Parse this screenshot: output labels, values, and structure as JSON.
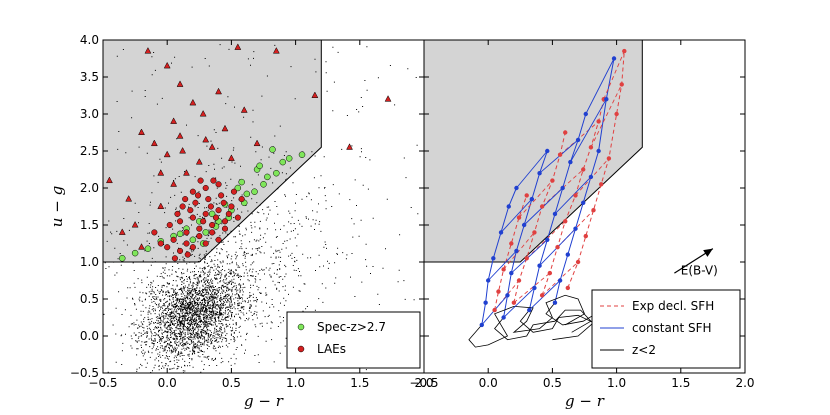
{
  "chart_data": [
    {
      "panel": "left",
      "type": "scatter",
      "xlabel": "g − r",
      "ylabel": "u − g",
      "xlim": [
        -0.5,
        2.0
      ],
      "ylim": [
        -0.5,
        4.0
      ],
      "xticks": [
        "−0.5",
        "0.0",
        "0.5",
        "1.0",
        "1.5",
        "2.0"
      ],
      "yticks": [
        "−0.5",
        "0.0",
        "0.5",
        "1.0",
        "1.5",
        "2.0",
        "2.5",
        "3.0",
        "3.5",
        "4.0"
      ],
      "selection_region": [
        [
          -0.5,
          1.0
        ],
        [
          -0.5,
          4.0
        ],
        [
          1.2,
          4.0
        ],
        [
          1.2,
          2.55
        ],
        [
          0.25,
          1.0
        ]
      ],
      "background_field": {
        "description": "dense cloud of field galaxies (small black dots)",
        "peak": [
          0.2,
          0.3
        ],
        "count_estimate": 20000
      },
      "legend_position": "lower right",
      "series": [
        {
          "name": "Spec-z>2.7",
          "marker": "circle",
          "color": "#7fe65a",
          "points": [
            [
              0.82,
              2.52
            ],
            [
              0.9,
              2.35
            ],
            [
              0.7,
              2.25
            ],
            [
              0.78,
              2.15
            ],
            [
              0.55,
              2.0
            ],
            [
              0.62,
              1.92
            ],
            [
              0.45,
              1.78
            ],
            [
              0.35,
              1.65
            ],
            [
              0.25,
              1.55
            ],
            [
              0.15,
              1.45
            ],
            [
              0.05,
              1.35
            ],
            [
              -0.05,
              1.28
            ],
            [
              -0.15,
              1.18
            ],
            [
              -0.25,
              1.12
            ],
            [
              -0.35,
              1.05
            ],
            [
              0.3,
              1.4
            ],
            [
              0.4,
              1.55
            ],
            [
              0.2,
              1.3
            ],
            [
              0.5,
              1.7
            ],
            [
              0.6,
              1.8
            ],
            [
              0.68,
              1.95
            ],
            [
              0.75,
              2.05
            ],
            [
              0.85,
              2.2
            ],
            [
              0.95,
              2.4
            ],
            [
              1.05,
              2.45
            ],
            [
              0.58,
              2.08
            ],
            [
              0.1,
              1.38
            ],
            [
              0.28,
              1.25
            ],
            [
              0.38,
              1.48
            ],
            [
              0.72,
              2.3
            ],
            [
              0.48,
              1.6
            ]
          ]
        },
        {
          "name": "LAEs",
          "marker": "circle",
          "color": "#d42020",
          "points": [
            [
              0.1,
              1.55
            ],
            [
              0.2,
              1.6
            ],
            [
              0.3,
              1.65
            ],
            [
              0.4,
              1.7
            ],
            [
              0.5,
              1.75
            ],
            [
              0.15,
              1.4
            ],
            [
              0.25,
              1.45
            ],
            [
              0.35,
              1.5
            ],
            [
              0.45,
              1.55
            ],
            [
              0.05,
              1.3
            ],
            [
              0.15,
              1.25
            ],
            [
              0.25,
              1.35
            ],
            [
              0.35,
              1.4
            ],
            [
              0.0,
              1.2
            ],
            [
              0.1,
              1.15
            ],
            [
              0.2,
              1.2
            ],
            [
              0.3,
              1.25
            ],
            [
              0.4,
              1.3
            ],
            [
              0.12,
              1.75
            ],
            [
              0.22,
              1.8
            ],
            [
              0.32,
              1.85
            ],
            [
              0.42,
              1.9
            ],
            [
              0.52,
              1.95
            ],
            [
              0.2,
              1.95
            ],
            [
              0.3,
              2.0
            ],
            [
              0.4,
              2.05
            ],
            [
              0.08,
              1.65
            ],
            [
              0.18,
              1.7
            ],
            [
              0.28,
              1.55
            ],
            [
              0.38,
              1.6
            ],
            [
              0.48,
              1.65
            ],
            [
              0.58,
              1.85
            ],
            [
              -0.05,
              1.25
            ],
            [
              -0.1,
              1.4
            ],
            [
              0.02,
              1.5
            ],
            [
              0.24,
              1.9
            ],
            [
              0.34,
              1.75
            ],
            [
              0.44,
              1.8
            ],
            [
              0.14,
              1.85
            ],
            [
              0.26,
              2.1
            ],
            [
              0.36,
              2.1
            ],
            [
              0.16,
              1.1
            ],
            [
              0.06,
              1.05
            ],
            [
              0.45,
              1.45
            ],
            [
              0.55,
              1.6
            ]
          ],
          "triangles": [
            [
              -0.45,
              2.1
            ],
            [
              -0.3,
              1.85
            ],
            [
              -0.35,
              1.4
            ],
            [
              -0.25,
              1.5
            ],
            [
              -0.15,
              3.85
            ],
            [
              0.0,
              3.65
            ],
            [
              0.1,
              3.4
            ],
            [
              0.2,
              3.15
            ],
            [
              0.28,
              3.0
            ],
            [
              0.05,
              2.9
            ],
            [
              -0.2,
              2.75
            ],
            [
              -0.1,
              2.6
            ],
            [
              0.0,
              2.45
            ],
            [
              0.12,
              2.5
            ],
            [
              -0.05,
              2.2
            ],
            [
              0.3,
              2.65
            ],
            [
              0.45,
              2.8
            ],
            [
              0.6,
              3.05
            ],
            [
              0.55,
              3.9
            ],
            [
              0.85,
              3.85
            ],
            [
              1.15,
              3.25
            ],
            [
              1.42,
              2.55
            ],
            [
              1.72,
              3.2
            ],
            [
              0.25,
              2.35
            ],
            [
              0.35,
              2.55
            ],
            [
              0.4,
              3.3
            ],
            [
              0.15,
              2.2
            ],
            [
              -0.05,
              1.75
            ],
            [
              0.05,
              2.05
            ],
            [
              0.5,
              2.4
            ],
            [
              0.7,
              2.6
            ],
            [
              -0.2,
              1.2
            ],
            [
              0.1,
              2.7
            ]
          ]
        }
      ]
    },
    {
      "panel": "right",
      "type": "line",
      "xlabel": "g − r",
      "xlim": [
        -0.5,
        2.0
      ],
      "ylim": [
        -0.5,
        4.0
      ],
      "xticks": [
        "−0.5",
        "0.0",
        "0.5",
        "1.0",
        "1.5",
        "2.0"
      ],
      "selection_region": [
        [
          -0.5,
          1.0
        ],
        [
          -0.5,
          4.0
        ],
        [
          1.2,
          4.0
        ],
        [
          1.2,
          2.55
        ],
        [
          0.25,
          1.0
        ]
      ],
      "annotation": {
        "text": "E(B-V)",
        "arrow_from": [
          1.45,
          0.85
        ],
        "arrow_to": [
          1.75,
          1.18
        ]
      },
      "legend_position": "lower right",
      "series": [
        {
          "name": "Exp decl. SFH",
          "style": "dashed",
          "color": "#e04040",
          "tracks": [
            [
              [
                0.05,
                0.35
              ],
              [
                0.08,
                0.6
              ],
              [
                0.12,
                0.9
              ],
              [
                0.18,
                1.25
              ],
              [
                0.24,
                1.6
              ],
              [
                0.3,
                1.9
              ]
            ],
            [
              [
                0.2,
                0.45
              ],
              [
                0.24,
                0.75
              ],
              [
                0.3,
                1.05
              ],
              [
                0.36,
                1.4
              ],
              [
                0.42,
                1.75
              ],
              [
                0.5,
                2.1
              ],
              [
                0.56,
                2.45
              ],
              [
                0.6,
                2.75
              ]
            ],
            [
              [
                0.42,
                0.55
              ],
              [
                0.48,
                0.85
              ],
              [
                0.54,
                1.2
              ],
              [
                0.6,
                1.55
              ],
              [
                0.68,
                1.9
              ],
              [
                0.74,
                2.25
              ],
              [
                0.8,
                2.55
              ],
              [
                0.86,
                2.9
              ],
              [
                0.9,
                3.2
              ]
            ],
            [
              [
                0.62,
                0.65
              ],
              [
                0.7,
                1.0
              ],
              [
                0.76,
                1.35
              ],
              [
                0.82,
                1.7
              ],
              [
                0.88,
                2.05
              ],
              [
                0.94,
                2.4
              ],
              [
                1.0,
                3.0
              ],
              [
                1.04,
                3.4
              ],
              [
                1.06,
                3.85
              ]
            ]
          ]
        },
        {
          "name": "constant SFH",
          "style": "solid",
          "color": "#2040d0",
          "tracks": [
            [
              [
                -0.05,
                0.15
              ],
              [
                -0.02,
                0.45
              ],
              [
                0.0,
                0.75
              ],
              [
                0.04,
                1.05
              ],
              [
                0.1,
                1.4
              ],
              [
                0.16,
                1.75
              ],
              [
                0.22,
                2.0
              ]
            ],
            [
              [
                0.12,
                0.25
              ],
              [
                0.15,
                0.55
              ],
              [
                0.18,
                0.85
              ],
              [
                0.22,
                1.15
              ],
              [
                0.28,
                1.5
              ],
              [
                0.34,
                1.85
              ],
              [
                0.4,
                2.2
              ],
              [
                0.46,
                2.5
              ]
            ],
            [
              [
                0.32,
                0.35
              ],
              [
                0.36,
                0.65
              ],
              [
                0.4,
                0.95
              ],
              [
                0.46,
                1.3
              ],
              [
                0.52,
                1.65
              ],
              [
                0.58,
                2.0
              ],
              [
                0.64,
                2.35
              ],
              [
                0.7,
                2.65
              ],
              [
                0.76,
                3.0
              ]
            ],
            [
              [
                0.52,
                0.45
              ],
              [
                0.56,
                0.75
              ],
              [
                0.62,
                1.1
              ],
              [
                0.68,
                1.45
              ],
              [
                0.74,
                1.8
              ],
              [
                0.8,
                2.15
              ],
              [
                0.86,
                2.5
              ],
              [
                0.92,
                3.2
              ],
              [
                0.98,
                3.75
              ]
            ]
          ]
        },
        {
          "name": "z<2",
          "style": "solid",
          "color": "#000000",
          "tracks": [
            [
              [
                -0.05,
                0.15
              ],
              [
                -0.1,
                0.05
              ],
              [
                -0.15,
                -0.05
              ],
              [
                -0.1,
                -0.15
              ],
              [
                0.0,
                -0.12
              ],
              [
                0.15,
                0.0
              ],
              [
                0.1,
                0.15
              ],
              [
                0.05,
                0.3
              ],
              [
                0.2,
                0.4
              ],
              [
                0.35,
                0.38
              ],
              [
                0.3,
                0.2
              ],
              [
                0.2,
                0.05
              ],
              [
                0.4,
                0.1
              ],
              [
                0.5,
                0.25
              ],
              [
                0.45,
                0.45
              ],
              [
                0.6,
                0.55
              ],
              [
                0.7,
                0.5
              ],
              [
                0.75,
                0.3
              ],
              [
                0.6,
                0.15
              ]
            ],
            [
              [
                0.12,
                0.25
              ],
              [
                0.05,
                0.1
              ],
              [
                0.15,
                -0.05
              ],
              [
                0.3,
                0.0
              ],
              [
                0.35,
                0.15
              ],
              [
                0.52,
                0.2
              ],
              [
                0.6,
                0.35
              ],
              [
                0.72,
                0.35
              ],
              [
                0.8,
                0.2
              ],
              [
                0.65,
                0.05
              ]
            ],
            [
              [
                0.32,
                0.35
              ],
              [
                0.25,
                0.2
              ],
              [
                0.35,
                0.05
              ],
              [
                0.5,
                0.1
              ],
              [
                0.55,
                0.25
              ],
              [
                0.7,
                0.28
              ],
              [
                0.82,
                0.18
              ],
              [
                0.7,
                0.0
              ],
              [
                0.5,
                -0.05
              ]
            ],
            [
              [
                0.52,
                0.45
              ],
              [
                0.45,
                0.3
              ],
              [
                0.58,
                0.15
              ],
              [
                0.74,
                0.2
              ],
              [
                0.86,
                0.32
              ],
              [
                0.95,
                0.25
              ],
              [
                0.88,
                0.1
              ]
            ]
          ]
        }
      ]
    }
  ]
}
